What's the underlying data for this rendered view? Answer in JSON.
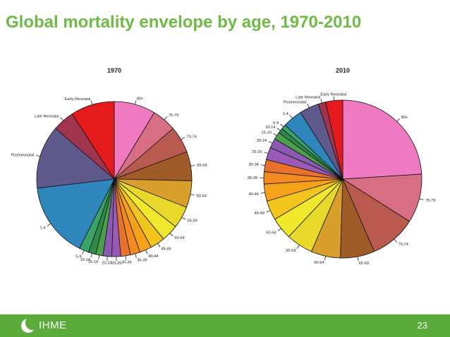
{
  "slide": {
    "title": "Global mortality envelope by age, 1970-2010",
    "page_number": "23",
    "logo_text": "IHME"
  },
  "colors": {
    "title": "#6dbb45",
    "footer": "#5aab3a"
  },
  "chart_data": [
    {
      "type": "pie",
      "title": "1970",
      "categories": [
        "80+",
        "75-79",
        "70-74",
        "65-69",
        "60-64",
        "55-59",
        "50-54",
        "45-49",
        "40-44",
        "35-39",
        "30-34",
        "25-29",
        "20-24",
        "15-19",
        "10-14",
        "5-9",
        "1-4",
        "Postneonatal",
        "Late Neonatal",
        "Early Neonatal"
      ],
      "values": [
        8.5,
        5.0,
        5.5,
        6.0,
        5.5,
        4.5,
        3.5,
        3.0,
        2.5,
        2.0,
        2.0,
        1.8,
        1.8,
        1.5,
        1.5,
        2.0,
        15.5,
        13.0,
        4.5,
        9.0
      ],
      "colors": [
        "#f07ac2",
        "#d86e84",
        "#b85a4e",
        "#a05c28",
        "#d8a02a",
        "#e8d82a",
        "#f0e82a",
        "#f2c41e",
        "#f5a21a",
        "#f28a20",
        "#e8722a",
        "#9a5ab8",
        "#8a5ab0",
        "#4aa04a",
        "#2e8a4a",
        "#3aa36a",
        "#2e86bd",
        "#5e5a8e",
        "#a0344e",
        "#e41a1c"
      ]
    },
    {
      "type": "pie",
      "title": "2010",
      "categories": [
        "80+",
        "75-79",
        "70-74",
        "65-69",
        "60-64",
        "55-59",
        "50-54",
        "45-49",
        "40-44",
        "35-39",
        "30-34",
        "25-29",
        "20-24",
        "15-19",
        "10-14",
        "5-9",
        "1-4",
        "Postneonatal",
        "Late Neonatal",
        "Early Neonatal"
      ],
      "values": [
        24.0,
        10.0,
        9.5,
        7.0,
        6.0,
        5.5,
        4.5,
        4.0,
        3.5,
        2.5,
        2.5,
        2.5,
        2.0,
        1.5,
        1.0,
        1.0,
        4.0,
        4.0,
        1.5,
        3.5
      ],
      "colors": [
        "#f07ac2",
        "#d86e84",
        "#b85a4e",
        "#a05c28",
        "#d8a02a",
        "#e8d82a",
        "#f0e82a",
        "#f2c41e",
        "#f5a21a",
        "#f28a20",
        "#e8722a",
        "#9a5ab8",
        "#8a5ab0",
        "#4aa04a",
        "#2e8a4a",
        "#3aa36a",
        "#2e86bd",
        "#5e5a8e",
        "#a0344e",
        "#e41a1c"
      ]
    }
  ]
}
